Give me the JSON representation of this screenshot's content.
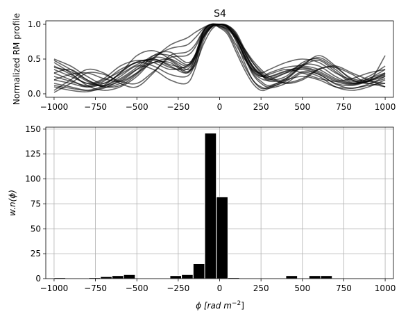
{
  "chart_data": [
    {
      "type": "line",
      "title": "S4",
      "xlabel": "",
      "ylabel": "Normalized RM profile",
      "xlim": [
        -1050,
        1050
      ],
      "ylim": [
        -0.05,
        1.05
      ],
      "xticks": [
        -1000,
        -750,
        -500,
        -250,
        0,
        250,
        500,
        750,
        1000
      ],
      "xtick_labels": [
        "−1000",
        "−750",
        "−500",
        "−250",
        "0",
        "250",
        "500",
        "750",
        "1000"
      ],
      "yticks": [
        0.0,
        0.5,
        1.0
      ],
      "ytick_labels": [
        "0.0",
        "0.5",
        "1.0"
      ],
      "grid": false,
      "line_color": "#000000",
      "line_alpha": 0.6,
      "x": [
        -1000,
        -900,
        -800,
        -700,
        -600,
        -500,
        -400,
        -300,
        -200,
        -150,
        -100,
        -50,
        0,
        50,
        100,
        150,
        200,
        250,
        300,
        400,
        500,
        600,
        700,
        800,
        900,
        1000
      ],
      "series": [
        {
          "values": [
            0.4,
            0.28,
            0.15,
            0.22,
            0.4,
            0.48,
            0.45,
            0.35,
            0.4,
            0.55,
            0.8,
            0.95,
            1.0,
            0.95,
            0.8,
            0.55,
            0.35,
            0.25,
            0.3,
            0.38,
            0.4,
            0.35,
            0.22,
            0.15,
            0.22,
            0.3
          ]
        },
        {
          "values": [
            0.2,
            0.15,
            0.1,
            0.18,
            0.35,
            0.45,
            0.5,
            0.4,
            0.3,
            0.5,
            0.85,
            0.98,
            1.0,
            0.97,
            0.85,
            0.6,
            0.4,
            0.28,
            0.22,
            0.3,
            0.35,
            0.28,
            0.15,
            0.12,
            0.18,
            0.25
          ]
        },
        {
          "values": [
            0.5,
            0.4,
            0.25,
            0.15,
            0.3,
            0.55,
            0.62,
            0.5,
            0.35,
            0.4,
            0.7,
            0.92,
            1.0,
            0.98,
            0.88,
            0.65,
            0.45,
            0.3,
            0.2,
            0.25,
            0.45,
            0.5,
            0.35,
            0.18,
            0.25,
            0.4
          ]
        },
        {
          "values": [
            0.1,
            0.05,
            0.03,
            0.1,
            0.25,
            0.4,
            0.35,
            0.2,
            0.15,
            0.35,
            0.75,
            0.96,
            1.0,
            0.96,
            0.75,
            0.45,
            0.2,
            0.1,
            0.08,
            0.15,
            0.3,
            0.25,
            0.1,
            0.05,
            0.1,
            0.2
          ]
        },
        {
          "values": [
            0.3,
            0.35,
            0.2,
            0.1,
            0.15,
            0.3,
            0.55,
            0.6,
            0.45,
            0.55,
            0.9,
            1.0,
            0.98,
            0.9,
            0.7,
            0.5,
            0.35,
            0.3,
            0.35,
            0.45,
            0.5,
            0.45,
            0.3,
            0.2,
            0.15,
            0.25
          ]
        },
        {
          "values": [
            0.15,
            0.1,
            0.05,
            0.08,
            0.2,
            0.35,
            0.45,
            0.45,
            0.3,
            0.45,
            0.88,
            1.0,
            0.97,
            0.92,
            0.78,
            0.55,
            0.3,
            0.18,
            0.12,
            0.2,
            0.25,
            0.2,
            0.1,
            0.08,
            0.12,
            0.15
          ]
        },
        {
          "values": [
            0.45,
            0.3,
            0.12,
            0.05,
            0.1,
            0.25,
            0.5,
            0.7,
            0.8,
            0.88,
            0.95,
            1.0,
            0.95,
            0.85,
            0.6,
            0.35,
            0.15,
            0.05,
            0.08,
            0.2,
            0.4,
            0.55,
            0.4,
            0.2,
            0.15,
            0.1
          ]
        },
        {
          "values": [
            0.05,
            0.2,
            0.35,
            0.3,
            0.15,
            0.1,
            0.3,
            0.55,
            0.6,
            0.7,
            0.9,
            1.0,
            0.98,
            0.93,
            0.82,
            0.65,
            0.48,
            0.35,
            0.25,
            0.15,
            0.2,
            0.35,
            0.4,
            0.3,
            0.2,
            0.1
          ]
        },
        {
          "values": [
            0.3,
            0.2,
            0.1,
            0.15,
            0.28,
            0.42,
            0.5,
            0.42,
            0.38,
            0.52,
            0.82,
            0.97,
            1.0,
            0.96,
            0.83,
            0.58,
            0.38,
            0.27,
            0.25,
            0.33,
            0.38,
            0.32,
            0.2,
            0.14,
            0.2,
            0.28
          ]
        },
        {
          "values": [
            0.25,
            0.18,
            0.12,
            0.2,
            0.32,
            0.46,
            0.48,
            0.38,
            0.35,
            0.5,
            0.83,
            0.97,
            1.0,
            0.97,
            0.84,
            0.6,
            0.38,
            0.26,
            0.24,
            0.32,
            0.37,
            0.3,
            0.18,
            0.13,
            0.19,
            0.27
          ]
        },
        {
          "values": [
            0.35,
            0.25,
            0.15,
            0.12,
            0.22,
            0.38,
            0.55,
            0.55,
            0.42,
            0.52,
            0.85,
            0.98,
            1.0,
            0.95,
            0.8,
            0.55,
            0.32,
            0.22,
            0.2,
            0.3,
            0.42,
            0.4,
            0.25,
            0.15,
            0.18,
            0.3
          ]
        },
        {
          "values": [
            0.2,
            0.28,
            0.3,
            0.22,
            0.18,
            0.3,
            0.45,
            0.5,
            0.4,
            0.55,
            0.88,
            0.99,
            1.0,
            0.95,
            0.78,
            0.52,
            0.33,
            0.25,
            0.28,
            0.35,
            0.3,
            0.22,
            0.18,
            0.22,
            0.3,
            0.35
          ]
        },
        {
          "values": [
            0.48,
            0.35,
            0.2,
            0.12,
            0.18,
            0.35,
            0.52,
            0.48,
            0.32,
            0.45,
            0.8,
            0.96,
            1.0,
            0.98,
            0.86,
            0.62,
            0.4,
            0.28,
            0.18,
            0.22,
            0.4,
            0.48,
            0.32,
            0.16,
            0.22,
            0.35
          ]
        },
        {
          "values": [
            0.12,
            0.08,
            0.05,
            0.12,
            0.3,
            0.45,
            0.4,
            0.28,
            0.25,
            0.42,
            0.8,
            0.97,
            1.0,
            0.96,
            0.8,
            0.52,
            0.28,
            0.15,
            0.1,
            0.18,
            0.32,
            0.28,
            0.14,
            0.08,
            0.14,
            0.22
          ]
        },
        {
          "values": [
            0.38,
            0.32,
            0.18,
            0.1,
            0.12,
            0.28,
            0.52,
            0.65,
            0.7,
            0.8,
            0.93,
            1.0,
            0.96,
            0.88,
            0.65,
            0.4,
            0.2,
            0.08,
            0.1,
            0.22,
            0.42,
            0.52,
            0.38,
            0.22,
            0.18,
            0.15
          ]
        },
        {
          "values": [
            0.02,
            0.15,
            0.3,
            0.28,
            0.18,
            0.15,
            0.32,
            0.52,
            0.55,
            0.66,
            0.89,
            1.0,
            0.99,
            0.94,
            0.82,
            0.63,
            0.45,
            0.32,
            0.22,
            0.16,
            0.22,
            0.36,
            0.38,
            0.28,
            0.18,
            0.55
          ]
        }
      ]
    },
    {
      "type": "bar",
      "title": "",
      "xlabel_main": "ϕ [rad m",
      "xlabel_sup": "−2",
      "xlabel_end": "]",
      "ylabel": "w.n(ϕ)",
      "xlim": [
        -1050,
        1050
      ],
      "ylim": [
        0,
        152
      ],
      "xticks": [
        -1000,
        -750,
        -500,
        -250,
        0,
        250,
        500,
        750,
        1000
      ],
      "xtick_labels": [
        "−1000",
        "−750",
        "−500",
        "−250",
        "0",
        "250",
        "500",
        "750",
        "1000"
      ],
      "yticks": [
        0,
        25,
        50,
        75,
        100,
        125,
        150
      ],
      "ytick_labels": [
        "0",
        "25",
        "50",
        "75",
        "100",
        "125",
        "150"
      ],
      "grid": true,
      "bar_color": "#000000",
      "bin_width": 70,
      "bin_left_edges": [
        -1000,
        -930,
        -860,
        -790,
        -720,
        -650,
        -580,
        -510,
        -440,
        -370,
        -300,
        -230,
        -160,
        -90,
        -20,
        50,
        120,
        190,
        260,
        330,
        400,
        470,
        540,
        610,
        680,
        750,
        820,
        890,
        960
      ],
      "values": [
        1,
        0,
        0,
        1,
        2,
        3,
        4,
        0,
        0,
        0,
        3,
        4,
        15,
        146,
        82,
        1,
        0,
        0,
        0,
        0,
        3,
        0,
        3,
        3,
        0,
        0,
        0,
        0,
        0
      ]
    }
  ]
}
